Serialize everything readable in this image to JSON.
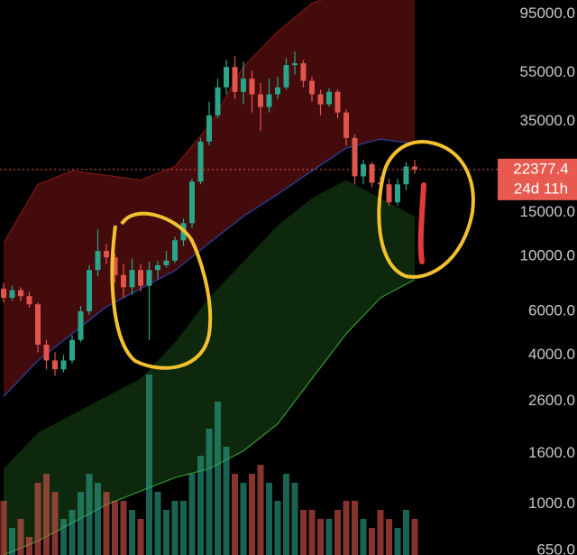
{
  "chart_data": {
    "type": "candlestick",
    "log_scale": true,
    "up_color": "#2aa58a",
    "down_color": "#e0564c",
    "categories": [
      null,
      null,
      null,
      null,
      null,
      null,
      null,
      null,
      null,
      null,
      null,
      null,
      null,
      null,
      null,
      null,
      null,
      null,
      null,
      null,
      null,
      null,
      null,
      null,
      null,
      null,
      null,
      null,
      null,
      null,
      null,
      null,
      null,
      null,
      null,
      null,
      null,
      null,
      null,
      null,
      null,
      null,
      null,
      null,
      null,
      null,
      null,
      null,
      null
    ],
    "open": [
      7400,
      6800,
      7300,
      6900,
      6400,
      4400,
      3800,
      3500,
      3800,
      4600,
      6000,
      8800,
      10500,
      9900,
      8400,
      7500,
      8800,
      7600,
      8800,
      9200,
      9600,
      11600,
      13600,
      20000,
      29000,
      37000,
      48000,
      58000,
      46000,
      52000,
      45000,
      40000,
      45000,
      48000,
      59000,
      60000,
      51000,
      45000,
      41000,
      46000,
      38000,
      30000,
      21000,
      23500,
      19800,
      19500,
      16500,
      19500,
      23000
    ],
    "high": [
      7800,
      7600,
      7500,
      7200,
      6500,
      4600,
      4100,
      4000,
      4800,
      6300,
      9200,
      12800,
      11200,
      10300,
      9300,
      9800,
      9300,
      9500,
      9600,
      10500,
      12000,
      14200,
      20500,
      30000,
      42000,
      52000,
      62000,
      64000,
      61000,
      56000,
      50000,
      52000,
      53000,
      63000,
      67000,
      62000,
      53000,
      47000,
      47500,
      47000,
      39000,
      31000,
      24500,
      24000,
      21000,
      20500,
      20500,
      24000,
      24500
    ],
    "low": [
      6500,
      6600,
      6600,
      6200,
      4100,
      3500,
      3300,
      3400,
      3700,
      4500,
      5800,
      8300,
      9300,
      7800,
      6800,
      7000,
      7200,
      4600,
      8100,
      9000,
      9400,
      11000,
      13000,
      19500,
      28000,
      36000,
      45000,
      43000,
      41000,
      38000,
      32000,
      38000,
      43000,
      47000,
      54000,
      48000,
      42000,
      37000,
      40000,
      36000,
      28000,
      19500,
      19500,
      19000,
      18600,
      16000,
      16000,
      18500,
      21500
    ],
    "close": [
      6800,
      7300,
      6900,
      6400,
      4400,
      3800,
      3500,
      3800,
      4600,
      6000,
      8800,
      10500,
      9900,
      8400,
      7500,
      8800,
      7600,
      8800,
      9200,
      9600,
      11600,
      13600,
      20000,
      29000,
      37000,
      48000,
      58000,
      46000,
      52000,
      45000,
      40000,
      45000,
      48000,
      59000,
      60000,
      51000,
      45000,
      41000,
      46000,
      38000,
      30000,
      21000,
      23500,
      19800,
      19500,
      16500,
      19500,
      23000,
      22377.4
    ],
    "volume": [
      30,
      15,
      20,
      10,
      40,
      45,
      35,
      20,
      25,
      35,
      45,
      40,
      35,
      30,
      30,
      25,
      20,
      100,
      35,
      25,
      30,
      30,
      45,
      55,
      70,
      85,
      60,
      45,
      40,
      45,
      50,
      40,
      30,
      45,
      40,
      25,
      25,
      20,
      20,
      25,
      30,
      30,
      20,
      15,
      25,
      20,
      15,
      25,
      20
    ],
    "bands": {
      "x": [
        0,
        4,
        8,
        12,
        16,
        20,
        24,
        28,
        32,
        36,
        40,
        44,
        48
      ],
      "upper": [
        11300,
        19500,
        22100,
        21200,
        20300,
        23000,
        33600,
        58100,
        80400,
        104700,
        117500,
        117500,
        117500
      ],
      "basis": [
        2720,
        3790,
        4870,
        6260,
        7400,
        8750,
        11300,
        14500,
        17800,
        22100,
        27300,
        29700,
        28400
      ],
      "lower_top": [
        1390,
        1940,
        2300,
        2720,
        3210,
        4480,
        6800,
        9520,
        13300,
        17150,
        20300,
        17150,
        14500
      ],
      "lower": [
        624,
        710,
        840,
        995,
        1130,
        1280,
        1390,
        1640,
        2110,
        3210,
        4870,
        6800,
        8050
      ],
      "upper_color": "#7a1414",
      "basis_color": "#2d3f9a",
      "lower_color": "#2f8f2f"
    },
    "countdown": "24d 11h",
    "ylim": [
      624,
      108000
    ],
    "yticks": [
      {
        "value": 650,
        "label": "650.0"
      },
      {
        "value": 1000,
        "label": "1000.0"
      },
      {
        "value": 1600,
        "label": "1600.0"
      },
      {
        "value": 2600,
        "label": "2600.0"
      },
      {
        "value": 4000,
        "label": "4000.0"
      },
      {
        "value": 6000,
        "label": "6000.0"
      },
      {
        "value": 10000,
        "label": "10000.0"
      },
      {
        "value": 15000,
        "label": "15000.0"
      },
      {
        "value": 35000,
        "label": "35000.0"
      },
      {
        "value": 55000,
        "label": "55000.0"
      },
      {
        "value": 95000,
        "label": "95000.0"
      }
    ],
    "grid": false
  }
}
